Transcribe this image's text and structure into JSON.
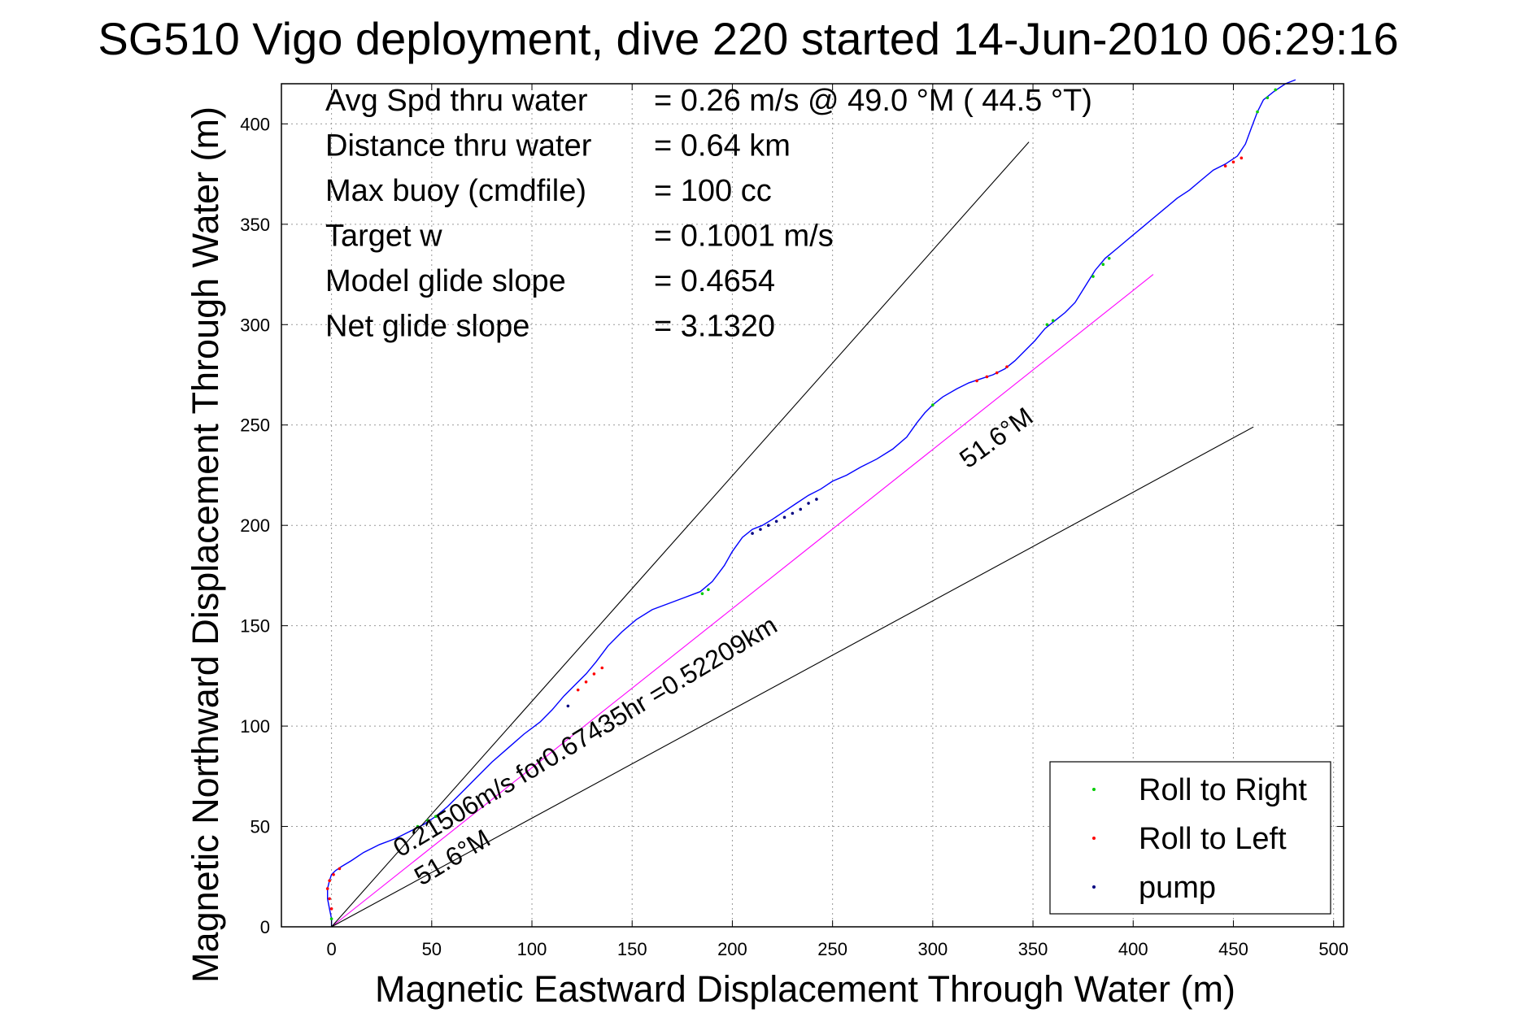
{
  "title": "SG510 Vigo deployment, dive 220 started 14-Jun-2010 06:29:16",
  "chart_data": {
    "type": "line",
    "xlabel": "Magnetic Eastward Displacement Through Water (m)",
    "ylabel": "Magnetic Northward Displacement Through Water (m)",
    "xlim": [
      -25,
      505
    ],
    "ylim": [
      0,
      420
    ],
    "xticks": [
      0,
      50,
      100,
      150,
      200,
      250,
      300,
      350,
      400,
      450,
      500
    ],
    "yticks": [
      0,
      50,
      100,
      150,
      200,
      250,
      300,
      350,
      400
    ],
    "grid": true,
    "legend_position": "bottom-right",
    "info_lines": [
      {
        "label": "Avg Spd thru water",
        "value": "=  0.26 m/s @  49.0 °M ( 44.5 °T)"
      },
      {
        "label": "Distance thru water",
        "value": "=  0.64 km"
      },
      {
        "label": "Max buoy (cmdfile)",
        "value": "= 100 cc"
      },
      {
        "label": "Target w",
        "value": "= 0.1001 m/s"
      },
      {
        "label": "Model glide slope",
        "value": "= 0.4654"
      },
      {
        "label": "Net glide slope",
        "value": "= 3.1320"
      }
    ],
    "annotations": {
      "speed_text": "0.21506m/s for0.67435hr =0.52209km",
      "heading_near": "51.6°M",
      "heading_far": "51.6°M"
    },
    "series": [
      {
        "name": "track",
        "color": "#0000ff",
        "x": [
          0,
          0,
          -1,
          -2,
          -2,
          -1,
          0,
          2,
          5,
          10,
          16,
          24,
          32,
          40,
          46,
          52,
          58,
          65,
          72,
          80,
          88,
          96,
          104,
          110,
          116,
          122,
          127,
          132,
          138,
          145,
          152,
          160,
          168,
          176,
          184,
          190,
          196,
          200,
          205,
          210,
          215,
          220,
          226,
          232,
          238,
          244,
          250,
          257,
          264,
          272,
          280,
          287,
          292,
          296,
          300,
          305,
          312,
          318,
          324,
          330,
          336,
          341,
          346,
          351,
          356,
          361,
          366,
          371,
          376,
          381,
          386,
          392,
          398,
          404,
          410,
          416,
          422,
          428,
          434,
          440,
          446,
          452,
          456,
          459,
          462,
          465,
          470,
          476,
          481
        ],
        "y": [
          0,
          4,
          9,
          14,
          19,
          23,
          26,
          28,
          30,
          33,
          37,
          41,
          44,
          48,
          51,
          55,
          60,
          67,
          74,
          82,
          89,
          96,
          102,
          108,
          115,
          121,
          126,
          132,
          140,
          147,
          153,
          158,
          161,
          164,
          167,
          172,
          180,
          187,
          194,
          198,
          200,
          203,
          207,
          211,
          215,
          218,
          222,
          225,
          229,
          233,
          238,
          244,
          251,
          256,
          260,
          264,
          268,
          271,
          273,
          275,
          278,
          282,
          287,
          292,
          298,
          302,
          306,
          311,
          319,
          327,
          333,
          338,
          343,
          348,
          353,
          358,
          363,
          367,
          372,
          377,
          380,
          384,
          390,
          398,
          406,
          412,
          416,
          420,
          422
        ]
      },
      {
        "name": "net course",
        "color": "#ff00ff",
        "x": [
          0,
          410
        ],
        "y": [
          0,
          325
        ]
      },
      {
        "name": "guide upper",
        "color": "#000000",
        "x": [
          0,
          348
        ],
        "y": [
          0,
          391
        ]
      },
      {
        "name": "guide lower",
        "color": "#000000",
        "x": [
          0,
          460
        ],
        "y": [
          0,
          249
        ]
      }
    ],
    "legend": [
      {
        "label": "Roll to Right",
        "color": "#00cc00"
      },
      {
        "label": "Roll to Left",
        "color": "#ff0000"
      },
      {
        "label": "pump",
        "color": "#000080"
      }
    ],
    "markers": {
      "roll_right": [
        [
          0,
          4
        ],
        [
          43,
          50
        ],
        [
          48,
          53
        ],
        [
          52,
          55
        ],
        [
          185,
          166
        ],
        [
          188,
          168
        ],
        [
          300,
          260
        ],
        [
          357,
          300
        ],
        [
          360,
          302
        ],
        [
          380,
          324
        ],
        [
          385,
          330
        ],
        [
          388,
          333
        ],
        [
          462,
          406
        ],
        [
          467,
          413
        ],
        [
          471,
          417
        ]
      ],
      "roll_left": [
        [
          0,
          9
        ],
        [
          -1,
          14
        ],
        [
          -2,
          19
        ],
        [
          -1,
          23
        ],
        [
          1,
          26
        ],
        [
          4,
          29
        ],
        [
          123,
          118
        ],
        [
          127,
          122
        ],
        [
          131,
          126
        ],
        [
          135,
          129
        ],
        [
          322,
          272
        ],
        [
          327,
          274
        ],
        [
          332,
          276
        ],
        [
          337,
          279
        ],
        [
          446,
          379
        ],
        [
          450,
          381
        ],
        [
          454,
          383
        ]
      ],
      "pump": [
        [
          210,
          196
        ],
        [
          214,
          198
        ],
        [
          218,
          200
        ],
        [
          222,
          202
        ],
        [
          226,
          204
        ],
        [
          230,
          206
        ],
        [
          234,
          208
        ],
        [
          238,
          211
        ],
        [
          242,
          213
        ],
        [
          118,
          110
        ]
      ]
    }
  }
}
